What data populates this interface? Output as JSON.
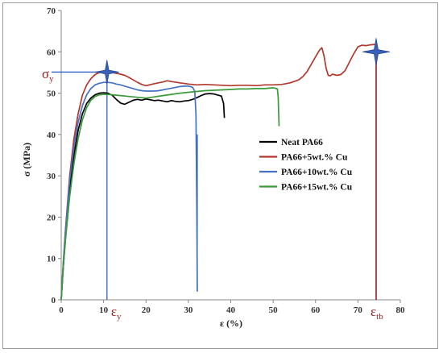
{
  "chart_data": {
    "type": "line",
    "xlabel": "ε (%)",
    "ylabel": "σ (MPa)",
    "xlim": [
      0,
      80
    ],
    "ylim": [
      0,
      70
    ],
    "x_ticks": [
      "0",
      "10",
      "20",
      "30",
      "40",
      "50",
      "60",
      "70",
      "80"
    ],
    "y_ticks": [
      "0",
      "10",
      "20",
      "30",
      "40",
      "50",
      "60",
      "70"
    ],
    "grid": false,
    "legend_position": "right",
    "series": [
      {
        "name": "Neat PA66",
        "color": "#000000",
        "x": [
          0,
          0.5,
          1,
          2,
          3,
          4,
          5,
          6,
          7,
          8,
          9,
          10,
          11,
          12,
          13,
          14,
          15,
          16,
          17,
          18,
          19,
          20,
          21,
          22,
          23,
          24,
          25,
          26,
          27,
          28,
          29,
          30,
          31,
          32,
          33,
          34,
          35,
          36,
          37,
          37.8,
          38.3,
          38.5
        ],
        "y": [
          0,
          8,
          15,
          27,
          35,
          41,
          45,
          47.5,
          48.8,
          49.6,
          50,
          50.1,
          50,
          49.5,
          48.5,
          47.6,
          47.3,
          47.8,
          48.3,
          48.5,
          48.3,
          48.6,
          48.4,
          48.2,
          48.3,
          48.1,
          47.9,
          48.2,
          48,
          47.9,
          48.1,
          48.2,
          48.5,
          48.9,
          49.4,
          49.8,
          49.9,
          49.8,
          49.5,
          49.3,
          47.5,
          44
        ]
      },
      {
        "name": "PA66+5wt.% Cu",
        "color": "#b03a2e",
        "x": [
          0,
          0.5,
          1,
          2,
          3,
          4,
          5,
          6,
          7,
          8,
          9,
          10,
          11,
          12,
          13,
          14,
          15,
          16,
          17,
          18,
          19,
          20,
          22,
          24,
          25,
          26,
          28,
          30,
          32,
          34,
          36,
          38,
          40,
          42,
          44,
          46,
          48,
          50,
          52,
          54,
          56,
          57,
          58,
          59,
          60,
          61,
          61.5,
          62,
          62.5,
          63,
          63.5,
          64,
          65,
          66,
          67,
          68,
          69,
          70,
          71,
          72,
          73,
          74
        ],
        "y": [
          0,
          9,
          17,
          30,
          39,
          45,
          49.5,
          52,
          53.5,
          54.5,
          55,
          55.1,
          55.1,
          55,
          54.8,
          54.6,
          54.3,
          53.8,
          53.2,
          52.6,
          52.1,
          51.8,
          52.3,
          52.7,
          53,
          52.8,
          52.5,
          52.2,
          52,
          52.1,
          52,
          51.9,
          51.8,
          51.9,
          51.9,
          51.8,
          52,
          52,
          52.1,
          52.5,
          53.2,
          54,
          55.2,
          57,
          58.8,
          60.5,
          61,
          59,
          56,
          54.3,
          54.2,
          54.6,
          54.3,
          54.5,
          55.5,
          57.5,
          59.5,
          61.2,
          61.6,
          61.5,
          61.7,
          61.8
        ]
      },
      {
        "name": "PA66+10wt.% Cu",
        "color": "#4472c4",
        "x": [
          0,
          0.5,
          1,
          2,
          3,
          4,
          5,
          6,
          7,
          8,
          9,
          10,
          11,
          12,
          13,
          14,
          15,
          16,
          17,
          18,
          19,
          20,
          21,
          22,
          23,
          24,
          25,
          26,
          27,
          28,
          29,
          30,
          30.5,
          31,
          31.5,
          31.8,
          32,
          32.1
        ],
        "y": [
          0,
          9,
          16.5,
          29,
          37,
          43,
          47,
          49.6,
          51.1,
          52,
          52.4,
          52.6,
          52.6,
          52.5,
          52.2,
          52,
          51.7,
          51.4,
          51.1,
          50.8,
          50.6,
          50.5,
          50.5,
          50.5,
          50.6,
          50.8,
          51,
          51.2,
          51.4,
          51.6,
          51.7,
          51.7,
          51.6,
          51.4,
          50.5,
          45,
          20,
          2
        ]
      },
      {
        "name": "PA66+15wt.% Cu",
        "color": "#3a9a3a",
        "x": [
          0,
          0.5,
          1,
          2,
          3,
          4,
          5,
          6,
          7,
          8,
          9,
          10,
          11,
          12,
          14,
          16,
          18,
          20,
          22,
          24,
          26,
          28,
          30,
          32,
          34,
          36,
          38,
          40,
          42,
          44,
          46,
          48,
          49,
          50,
          50.5,
          51,
          51.2,
          51.3,
          51.4
        ],
        "y": [
          0,
          8,
          14.5,
          25,
          33,
          39,
          43.5,
          46.5,
          48.3,
          49.2,
          49.6,
          49.7,
          49.7,
          49.6,
          49.4,
          49.2,
          49,
          48.8,
          49.1,
          49.4,
          49.7,
          50,
          50.2,
          50.4,
          50.6,
          50.7,
          50.8,
          50.9,
          51,
          51,
          51.1,
          51.1,
          51.2,
          51.3,
          51.2,
          51,
          49,
          45,
          42
        ]
      }
    ],
    "annotations": {
      "sigma_y": {
        "label": "σ",
        "sub": "y",
        "value": 55.1
      },
      "eps_y": {
        "label": "ε",
        "sub": "y",
        "value": 10.8
      },
      "eps_tb": {
        "label": "ε",
        "sub": "tb",
        "value": 74.3
      },
      "yield_point": {
        "x": 10.8,
        "y": 55.1
      },
      "break_point": {
        "x": 74.3,
        "y": 60
      },
      "blue_drop_x": 32.1,
      "star_color": "#3a5fb8",
      "marker_line_color": "#9b1c1c",
      "guide_line_color": "#2f5fc4"
    }
  }
}
